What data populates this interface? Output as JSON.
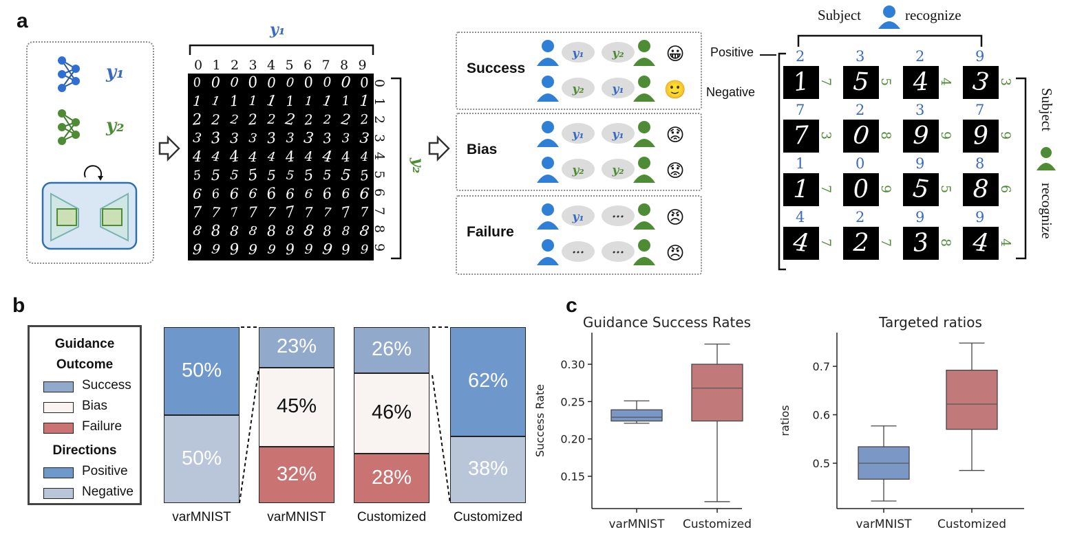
{
  "panels": {
    "a": "a",
    "b": "b",
    "c": "c"
  },
  "panel_a": {
    "y1": "y₁",
    "y2": "y₂",
    "digits": [
      "0",
      "1",
      "2",
      "3",
      "4",
      "5",
      "6",
      "7",
      "8",
      "9"
    ],
    "rows": [
      {
        "label": "Success",
        "m1": "y₁",
        "m2": "y₂",
        "m3": "y₂",
        "m4": "y₁",
        "faces": [
          "😀",
          "🙂"
        ]
      },
      {
        "label": "Bias",
        "m1": "y₁",
        "m2": "y₂",
        "m3": "y₁",
        "m4": "y₂",
        "faces": [
          "😟",
          "😟"
        ]
      },
      {
        "label": "Failure",
        "m1": "y₁",
        "m2": "···",
        "m3": "···",
        "m4": "···",
        "faces": [
          "😠",
          "😠"
        ]
      }
    ],
    "subject_top": "Subject",
    "recognize_top": "recognize",
    "subject_side": "Subject",
    "recognize_side": "recognize",
    "positive": "Positive",
    "negative": "Negative",
    "grid": [
      [
        {
          "t": "2",
          "d": "1",
          "r": "7"
        },
        {
          "t": "3",
          "d": "5",
          "r": "5"
        },
        {
          "t": "2",
          "d": "4",
          "r": "4"
        },
        {
          "t": "9",
          "d": "3",
          "r": "3"
        }
      ],
      [
        {
          "t": "7",
          "d": "7",
          "r": "3"
        },
        {
          "t": "2",
          "d": "0",
          "r": "8"
        },
        {
          "t": "3",
          "d": "9",
          "r": "9"
        },
        {
          "t": "7",
          "d": "9",
          "r": "9"
        }
      ],
      [
        {
          "t": "1",
          "d": "1",
          "r": "7"
        },
        {
          "t": "0",
          "d": "0",
          "r": "9"
        },
        {
          "t": "9",
          "d": "5",
          "r": "5"
        },
        {
          "t": "8",
          "d": "8",
          "r": "6"
        }
      ],
      [
        {
          "t": "4",
          "d": "4",
          "r": "7"
        },
        {
          "t": "2",
          "d": "2",
          "r": "7"
        },
        {
          "t": "9",
          "d": "3",
          "r": "8"
        },
        {
          "t": "9",
          "d": "4",
          "r": "4"
        }
      ]
    ]
  },
  "panel_b": {
    "legend": {
      "title1": "Guidance",
      "title2": "Outcome",
      "success": "Success",
      "bias": "Bias",
      "failure": "Failure",
      "title3": "Directions",
      "positive": "Positive",
      "negative": "Negative"
    },
    "colors": {
      "positive": "#6e97cb",
      "negative": "#b9c6d9",
      "success": "#91a9cb",
      "bias": "#f9f4f2",
      "failure": "#c97373"
    },
    "bars": [
      {
        "category": "varMNIST",
        "kind": "direction",
        "values": [
          {
            "name": "Positive",
            "value": 50,
            "label": "50%"
          },
          {
            "name": "Negative",
            "value": 50,
            "label": "50%"
          }
        ]
      },
      {
        "category": "varMNIST",
        "kind": "outcome",
        "values": [
          {
            "name": "Success",
            "value": 23,
            "label": "23%"
          },
          {
            "name": "Bias",
            "value": 45,
            "label": "45%"
          },
          {
            "name": "Failure",
            "value": 32,
            "label": "32%"
          }
        ]
      },
      {
        "category": "Customized",
        "kind": "outcome",
        "values": [
          {
            "name": "Success",
            "value": 26,
            "label": "26%"
          },
          {
            "name": "Bias",
            "value": 46,
            "label": "46%"
          },
          {
            "name": "Failure",
            "value": 28,
            "label": "28%"
          }
        ]
      },
      {
        "category": "Customized",
        "kind": "direction",
        "values": [
          {
            "name": "Positive",
            "value": 62,
            "label": "62%"
          },
          {
            "name": "Negative",
            "value": 38,
            "label": "38%"
          }
        ]
      }
    ]
  },
  "chart_data": [
    {
      "type": "box",
      "title": "Guidance Success Rates",
      "ylabel": "Success Rate",
      "categories": [
        "varMNIST",
        "Customized"
      ],
      "ylim": [
        0.1,
        0.335
      ],
      "yticks": [
        "0.15",
        "0.20",
        "0.25",
        "0.30"
      ],
      "boxes": [
        {
          "category": "varMNIST",
          "whislo": 0.221,
          "q1": 0.224,
          "med": 0.229,
          "q3": 0.239,
          "whishi": 0.251,
          "color": "#7b97c5"
        },
        {
          "category": "Customized",
          "whislo": 0.116,
          "q1": 0.224,
          "med": 0.268,
          "q3": 0.3,
          "whishi": 0.327,
          "color": "#c1797a"
        }
      ]
    },
    {
      "type": "box",
      "title": "Targeted ratios",
      "ylabel": "ratios",
      "categories": [
        "varMNIST",
        "Customized"
      ],
      "ylim": [
        0.4,
        0.78
      ],
      "yticks": [
        "0.5",
        "0.6",
        "0.7"
      ],
      "boxes": [
        {
          "category": "varMNIST",
          "whislo": 0.422,
          "q1": 0.467,
          "med": 0.5,
          "q3": 0.534,
          "whishi": 0.577,
          "color": "#7b97c5"
        },
        {
          "category": "Customized",
          "whislo": 0.485,
          "q1": 0.57,
          "med": 0.622,
          "q3": 0.692,
          "whishi": 0.748,
          "color": "#c1797a"
        }
      ]
    }
  ]
}
